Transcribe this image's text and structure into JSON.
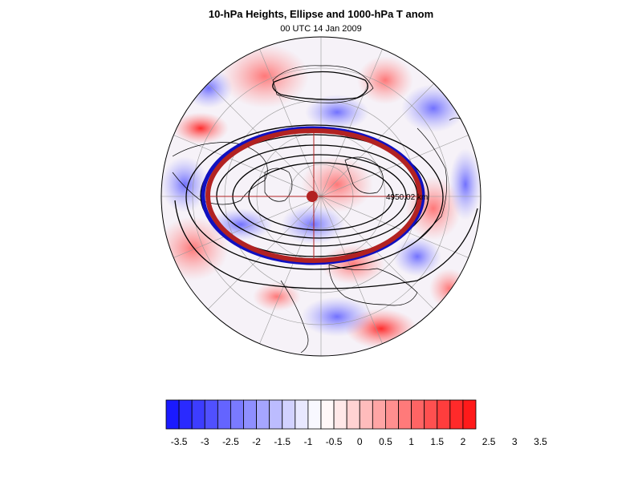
{
  "title": "10-hPa Heights, Ellipse and 1000-hPa T anom",
  "subtitle": "00 UTC 14 Jan 2009",
  "distance_label": "4950.02 km",
  "colorbar": {
    "labels": [
      "-3.5",
      "-3",
      "-2.5",
      "-2",
      "-1.5",
      "-1",
      "-0.5",
      "0",
      "0.5",
      "1",
      "1.5",
      "2",
      "2.5",
      "3",
      "3.5"
    ],
    "colors": [
      "#1a1aff",
      "#2a2aff",
      "#3d3dff",
      "#5050ff",
      "#6464ff",
      "#7a7aff",
      "#8f8fff",
      "#a5a5ff",
      "#bcbcff",
      "#d2d2ff",
      "#e8e8ff",
      "#f8f8ff",
      "#fff8f8",
      "#ffe8e8",
      "#ffd2d2",
      "#ffbcbc",
      "#ffa5a5",
      "#ff8f8f",
      "#ff7a7a",
      "#ff6464",
      "#ff5050",
      "#ff3d3d",
      "#ff2a2a",
      "#ff1a1a"
    ],
    "colors_note": "blue-to-red diverging"
  },
  "colors": {
    "ellipse": "#b22222",
    "blue_band": "#1010c0",
    "contour": "#000000",
    "center_dot": "#b22222"
  }
}
